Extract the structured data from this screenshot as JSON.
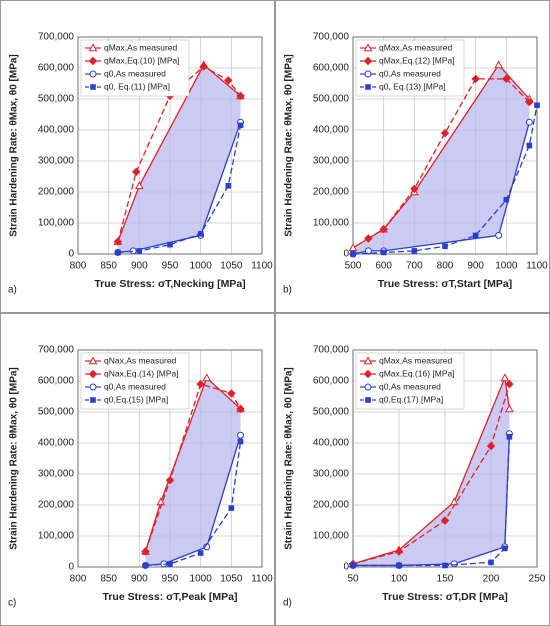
{
  "chart_data": [
    {
      "type": "line",
      "panel_label": "a)",
      "y_label": "Strain Hardening Rate: θMax, θ0 [MPa]",
      "x_label": "True Stress: σT,Necking [MPa]",
      "xlim": [
        800,
        1100
      ],
      "xticks": [
        800,
        850,
        900,
        950,
        1000,
        1050,
        1100
      ],
      "ylim": [
        0,
        700000
      ],
      "yticks": [
        0,
        {
          "value": 100000,
          "label": "100,000"
        },
        {
          "value": 200000,
          "label": "200,000"
        },
        {
          "value": 300000,
          "label": "300,000"
        },
        {
          "value": 400000,
          "label": "400,000"
        },
        {
          "value": 500000,
          "label": "500,000"
        },
        {
          "value": 600000,
          "label": "600,000"
        },
        {
          "value": 700000,
          "label": "700,000"
        }
      ],
      "grid": true,
      "shade_color": "#b8b8ee",
      "series": [
        {
          "name": "qMax,As measured",
          "color": "#e0202a",
          "marker": "triangle",
          "dashed": false,
          "x": [
            865,
            900,
            1005,
            1065
          ],
          "values": [
            40000,
            220000,
            610000,
            510000
          ]
        },
        {
          "name": "qMax,Eq.(10) [MPa]",
          "color": "#e0202a",
          "marker": "diamond",
          "dashed": true,
          "x": [
            865,
            895,
            950,
            1005,
            1045,
            1065
          ],
          "values": [
            40000,
            265000,
            510000,
            605000,
            560000,
            510000
          ]
        },
        {
          "name": "q0,As measured",
          "color": "#2a3fcf",
          "marker": "circle",
          "dashed": false,
          "x": [
            865,
            890,
            1000,
            1065
          ],
          "values": [
            5000,
            10000,
            60000,
            425000
          ]
        },
        {
          "name": "q0, Eq.(11) [MPa]",
          "color": "#2a3fcf",
          "marker": "square",
          "dashed": true,
          "x": [
            865,
            900,
            950,
            1000,
            1045,
            1065
          ],
          "values": [
            5000,
            10000,
            30000,
            65000,
            220000,
            415000
          ]
        }
      ]
    },
    {
      "type": "line",
      "panel_label": "b)",
      "y_label": "Strain Hardening Rate: θMax, θ0 [MPa]",
      "x_label": "True Stress: σT,Start [MPa]",
      "xlim": [
        500,
        1100
      ],
      "xticks": [
        500,
        600,
        700,
        800,
        900,
        1000,
        1100
      ],
      "ylim": [
        0,
        700000
      ],
      "yticks": [
        0,
        {
          "value": 100000,
          "label": "100,000"
        },
        {
          "value": 200000,
          "label": "200,000"
        },
        {
          "value": 300000,
          "label": "300,000"
        },
        {
          "value": 400000,
          "label": "400,000"
        },
        {
          "value": 500000,
          "label": "500,000"
        },
        {
          "value": 600000,
          "label": "600,000"
        },
        {
          "value": 700000,
          "label": "700,000"
        }
      ],
      "grid": true,
      "shade_color": "#b8b8ee",
      "series": [
        {
          "name": "qMax,As measured",
          "color": "#e0202a",
          "marker": "triangle",
          "dashed": false,
          "x": [
            500,
            600,
            700,
            975,
            1075
          ],
          "values": [
            20000,
            80000,
            200000,
            610000,
            500000
          ]
        },
        {
          "name": "qMax,Eq.(12) [MPa]",
          "color": "#e0202a",
          "marker": "diamond",
          "dashed": true,
          "x": [
            550,
            600,
            700,
            800,
            900,
            1000,
            1075
          ],
          "values": [
            50000,
            80000,
            210000,
            390000,
            565000,
            565000,
            490000
          ]
        },
        {
          "name": "q0,As measured",
          "color": "#2a3fcf",
          "marker": "circle",
          "dashed": false,
          "x": [
            500,
            550,
            600,
            975,
            1075
          ],
          "values": [
            0,
            10000,
            10000,
            60000,
            425000
          ]
        },
        {
          "name": "q0, Eq.(13) [MPa]",
          "color": "#2a3fcf",
          "marker": "square",
          "dashed": true,
          "x": [
            500,
            600,
            700,
            800,
            900,
            1000,
            1075,
            1100
          ],
          "values": [
            0,
            5000,
            10000,
            25000,
            60000,
            175000,
            350000,
            480000
          ]
        }
      ]
    },
    {
      "type": "line",
      "panel_label": "c)",
      "y_label": "Strain Hardening Rate: θMax, θ0 [MPa]",
      "x_label": "True Stress: σT,Peak [MPa]",
      "xlim": [
        800,
        1100
      ],
      "xticks": [
        800,
        850,
        900,
        950,
        1000,
        1050,
        1100
      ],
      "ylim": [
        0,
        700000
      ],
      "yticks": [
        0,
        {
          "value": 100000,
          "label": "100,000"
        },
        {
          "value": 200000,
          "label": "200,000"
        },
        {
          "value": 300000,
          "label": "300,000"
        },
        {
          "value": 400000,
          "label": "400,000"
        },
        {
          "value": 500000,
          "label": "500,000"
        },
        {
          "value": 600000,
          "label": "600,000"
        },
        {
          "value": 700000,
          "label": "700,000"
        }
      ],
      "grid": true,
      "shade_color": "#b8b8ee",
      "series": [
        {
          "name": "qNax,As measured",
          "color": "#e0202a",
          "marker": "triangle",
          "dashed": false,
          "x": [
            910,
            935,
            1010,
            1065
          ],
          "values": [
            50000,
            210000,
            610000,
            510000
          ]
        },
        {
          "name": "qNax,Eq.(14) [MPa]",
          "color": "#e0202a",
          "marker": "diamond",
          "dashed": true,
          "x": [
            910,
            950,
            1000,
            1050,
            1065
          ],
          "values": [
            50000,
            280000,
            590000,
            560000,
            510000
          ]
        },
        {
          "name": "q0,As measured",
          "color": "#2a3fcf",
          "marker": "circle",
          "dashed": false,
          "x": [
            910,
            940,
            1010,
            1065
          ],
          "values": [
            5000,
            10000,
            65000,
            425000
          ]
        },
        {
          "name": "q0,Eq.(15) [MPa]",
          "color": "#2a3fcf",
          "marker": "square",
          "dashed": true,
          "x": [
            910,
            950,
            1000,
            1050,
            1065
          ],
          "values": [
            5000,
            10000,
            45000,
            190000,
            405000
          ]
        }
      ]
    },
    {
      "type": "line",
      "panel_label": "d)",
      "y_label": "Strain Hardening Rate: θMax, θ0 [MPa]",
      "x_label": "True Stress: σT,DR [MPa]",
      "xlim": [
        50,
        250
      ],
      "xticks": [
        50,
        100,
        150,
        200,
        250
      ],
      "ylim": [
        0,
        700000
      ],
      "yticks": [
        0,
        {
          "value": 100000,
          "label": "100,000"
        },
        {
          "value": 200000,
          "label": "200,000"
        },
        {
          "value": 300000,
          "label": "300,000"
        },
        {
          "value": 400000,
          "label": "400,000"
        },
        {
          "value": 500000,
          "label": "500,000"
        },
        {
          "value": 600000,
          "label": "600,000"
        },
        {
          "value": 700000,
          "label": "700,000"
        }
      ],
      "grid": true,
      "shade_color": "#b8b8ee",
      "series": [
        {
          "name": "qMax,As measured",
          "color": "#e0202a",
          "marker": "triangle",
          "dashed": false,
          "x": [
            50,
            100,
            160,
            215,
            220
          ],
          "values": [
            10000,
            55000,
            210000,
            610000,
            510000
          ]
        },
        {
          "name": "qMax,Eq.(16) [MPa]",
          "color": "#e0202a",
          "marker": "diamond",
          "dashed": true,
          "x": [
            50,
            100,
            150,
            200,
            220
          ],
          "values": [
            10000,
            50000,
            150000,
            390000,
            590000
          ]
        },
        {
          "name": "q0,As measured",
          "color": "#2a3fcf",
          "marker": "circle",
          "dashed": false,
          "x": [
            50,
            100,
            160,
            215,
            220
          ],
          "values": [
            5000,
            5000,
            10000,
            65000,
            430000
          ]
        },
        {
          "name": "q0,Eq.(17) [MPa]",
          "color": "#2a3fcf",
          "marker": "square",
          "dashed": true,
          "x": [
            50,
            100,
            150,
            200,
            215,
            220
          ],
          "values": [
            5000,
            5000,
            5000,
            15000,
            60000,
            420000
          ]
        }
      ]
    }
  ]
}
